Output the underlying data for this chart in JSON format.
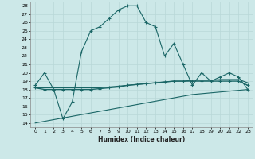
{
  "xlabel": "Humidex (Indice chaleur)",
  "bg_color": "#cce8e8",
  "grid_color": "#b8d8d8",
  "line_color": "#1a6666",
  "xlim": [
    -0.5,
    23.5
  ],
  "ylim": [
    13.5,
    28.5
  ],
  "xticks": [
    0,
    1,
    2,
    3,
    4,
    5,
    6,
    7,
    8,
    9,
    10,
    11,
    12,
    13,
    14,
    15,
    16,
    17,
    18,
    19,
    20,
    21,
    22,
    23
  ],
  "yticks": [
    14,
    15,
    16,
    17,
    18,
    19,
    20,
    21,
    22,
    23,
    24,
    25,
    26,
    27,
    28
  ],
  "line1_x": [
    0,
    1,
    2,
    3,
    4,
    5,
    6,
    7,
    8,
    9,
    10,
    11,
    12,
    13,
    14,
    15,
    16,
    17,
    18,
    19,
    20,
    21,
    22,
    23
  ],
  "line1_y": [
    18.5,
    20.0,
    18.0,
    14.5,
    16.5,
    22.5,
    25.0,
    25.5,
    26.5,
    27.5,
    28.0,
    28.0,
    26.0,
    25.5,
    22.0,
    23.5,
    21.0,
    18.5,
    20.0,
    19.0,
    19.5,
    20.0,
    19.5,
    18.0
  ],
  "line2_x": [
    0,
    1,
    2,
    3,
    4,
    5,
    6,
    7,
    8,
    9,
    10,
    11,
    12,
    13,
    14,
    15,
    16,
    17,
    18,
    19,
    20,
    21,
    22,
    23
  ],
  "line2_y": [
    18.2,
    18.0,
    18.0,
    18.0,
    18.0,
    18.0,
    18.0,
    18.1,
    18.2,
    18.3,
    18.5,
    18.6,
    18.7,
    18.8,
    18.9,
    19.0,
    19.0,
    19.0,
    19.0,
    19.0,
    19.0,
    19.0,
    19.0,
    18.5
  ],
  "line3_x": [
    0,
    1,
    2,
    3,
    4,
    5,
    6,
    7,
    8,
    9,
    10,
    11,
    12,
    13,
    14,
    15,
    16,
    17,
    18,
    19,
    20,
    21,
    22,
    23
  ],
  "line3_y": [
    14.0,
    14.2,
    14.4,
    14.6,
    14.8,
    15.0,
    15.2,
    15.4,
    15.6,
    15.8,
    16.0,
    16.2,
    16.4,
    16.6,
    16.8,
    17.0,
    17.2,
    17.4,
    17.5,
    17.6,
    17.7,
    17.8,
    17.9,
    18.0
  ],
  "line4_x": [
    0,
    1,
    2,
    3,
    4,
    5,
    6,
    7,
    8,
    9,
    10,
    11,
    12,
    13,
    14,
    15,
    16,
    17,
    18,
    19,
    20,
    21,
    22,
    23
  ],
  "line4_y": [
    18.2,
    18.2,
    18.2,
    18.2,
    18.2,
    18.2,
    18.2,
    18.2,
    18.3,
    18.4,
    18.5,
    18.6,
    18.7,
    18.8,
    18.9,
    19.0,
    19.0,
    19.1,
    19.1,
    19.1,
    19.2,
    19.2,
    19.2,
    18.8
  ]
}
